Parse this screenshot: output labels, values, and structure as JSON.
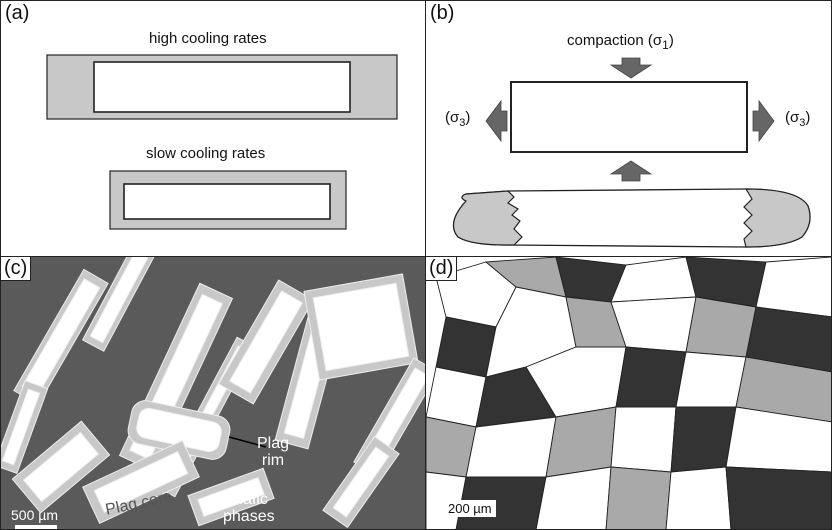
{
  "panels": {
    "a": {
      "label": "(a)",
      "high_cooling": "high cooling rates",
      "slow_cooling": "slow cooling rates"
    },
    "b": {
      "label": "(b)",
      "compaction": "compaction (σ",
      "compaction_sub": "1",
      "compaction_close": ")",
      "left_stress": "(σ",
      "left_sub": "3",
      "left_close": ")",
      "right_stress": "(σ",
      "right_sub": "3",
      "right_close": ")"
    },
    "c": {
      "label": "(c)",
      "plag_rim_line1": "Plag",
      "plag_rim_line2": "rim",
      "plag_core": "Plag core",
      "mafic_line1": "Mafic",
      "mafic_line2": "phases",
      "scale": "500 µm"
    },
    "d": {
      "label": "(d)",
      "scale": "200 µm"
    }
  },
  "colors": {
    "rim_gray": "#c8c8c8",
    "matrix_dark": "#5a5a5a",
    "arrow_gray": "#666666",
    "dark_phase": "#333333",
    "mid_phase": "#a9a9a9"
  }
}
